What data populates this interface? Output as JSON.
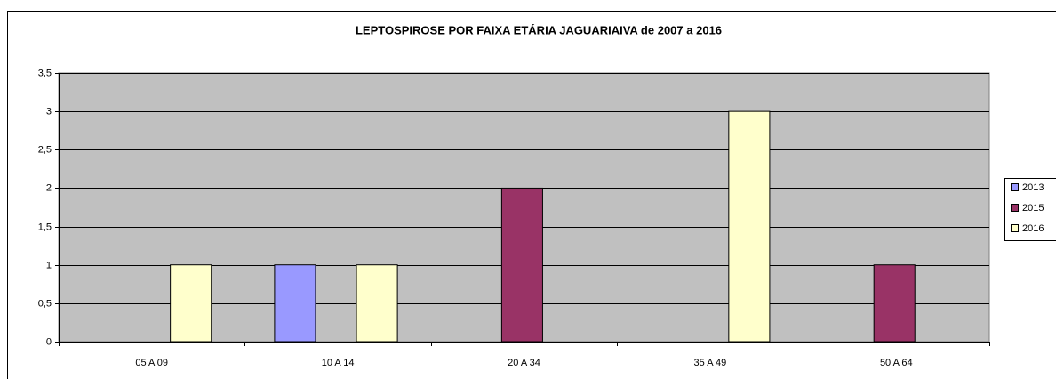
{
  "chart_data": {
    "type": "bar",
    "title": "LEPTOSPIROSE POR FAIXA ETÁRIA JAGUARIAIVA de 2007 a 2016",
    "categories": [
      "05 A 09",
      "10 A 14",
      "20 A 34",
      "35 A 49",
      "50 A 64"
    ],
    "series": [
      {
        "name": "2013",
        "color": "#9999ff",
        "values": [
          0,
          1,
          0,
          0,
          0
        ]
      },
      {
        "name": "2015",
        "color": "#993366",
        "values": [
          0,
          0,
          2,
          0,
          1
        ]
      },
      {
        "name": "2016",
        "color": "#ffffcc",
        "values": [
          1,
          1,
          0,
          3,
          0
        ]
      }
    ],
    "ylim": [
      0,
      3.5
    ],
    "yticks": [
      0,
      {
        "value": 0.5,
        "label": "0,5"
      },
      1,
      {
        "value": 1.5,
        "label": "1,5"
      },
      2,
      {
        "value": 2.5,
        "label": "2,5"
      },
      3,
      {
        "value": 3.5,
        "label": "3,5"
      }
    ],
    "grid": true,
    "legend": "right",
    "plot_background": "#c0c0c0"
  }
}
